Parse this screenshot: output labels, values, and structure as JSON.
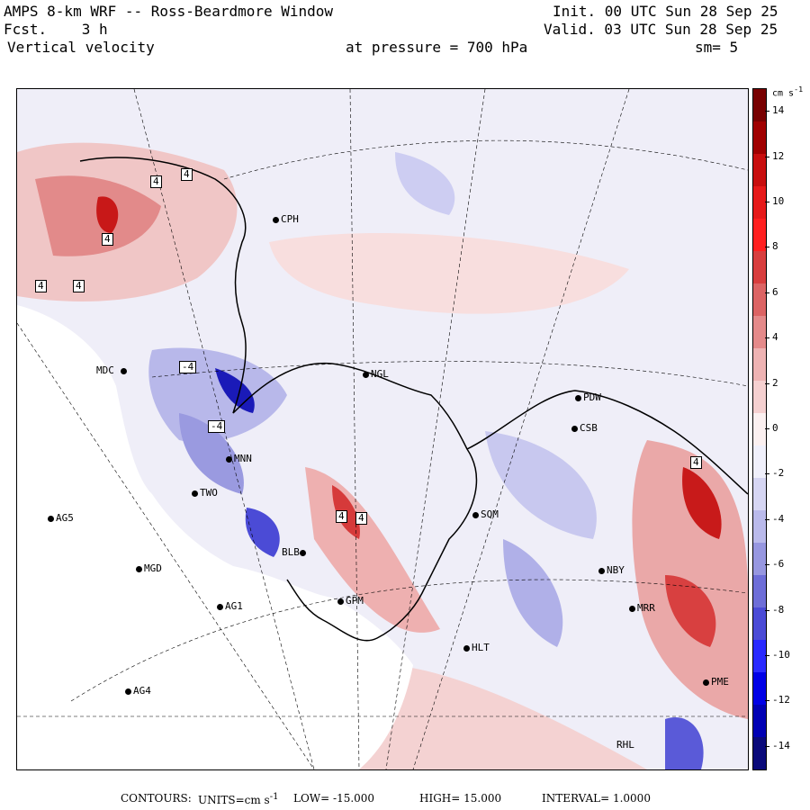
{
  "header": {
    "title": "AMPS 8-km WRF -- Ross-Beardmore Window",
    "fcst_label": "Fcst.",
    "fcst_value": "3 h",
    "field": "Vertical velocity",
    "pressure_label": "at pressure =",
    "pressure_value": "700 hPa",
    "smoothing": "sm= 5",
    "init": "Init. 00 UTC Sun 28 Sep 25",
    "valid": "Valid. 03 UTC Sun 28 Sep 25"
  },
  "colorbar": {
    "unit": "cm s",
    "unit_exp": "-1",
    "tick_labels": [
      "14",
      "12",
      "10",
      "8",
      "6",
      "4",
      "2",
      "0",
      "-2",
      "-4",
      "-6",
      "-8",
      "-10",
      "-12",
      "-14"
    ],
    "min": -15,
    "max": 15,
    "colors": [
      "#0a0a7a",
      "#0000b4",
      "#0000e6",
      "#2a2aff",
      "#4b4bd6",
      "#6e6ed8",
      "#9797e0",
      "#babaeb",
      "#d6d6f3",
      "#f0f0fb",
      "#fbf0f0",
      "#f5d0d0",
      "#eeb3b3",
      "#e48a8a",
      "#dc6464",
      "#d83e3e",
      "#ff2020",
      "#e61a1a",
      "#c80e0e",
      "#a00000",
      "#780000"
    ]
  },
  "stations": [
    {
      "code": "CPH"
    },
    {
      "code": "MDC"
    },
    {
      "code": "NGL"
    },
    {
      "code": "PDW"
    },
    {
      "code": "CSB"
    },
    {
      "code": "MNN"
    },
    {
      "code": "TWO"
    },
    {
      "code": "AG5"
    },
    {
      "code": "SQM"
    },
    {
      "code": "MGD"
    },
    {
      "code": "BLB"
    },
    {
      "code": "AG1"
    },
    {
      "code": "GPM"
    },
    {
      "code": "NBY"
    },
    {
      "code": "HLT"
    },
    {
      "code": "MRR"
    },
    {
      "code": "AG4"
    },
    {
      "code": "PME"
    },
    {
      "code": "RHL"
    }
  ],
  "contour_labels": [
    "4",
    "4",
    "4",
    "4",
    "4",
    "-4",
    "-4",
    "4",
    "4",
    "4"
  ],
  "footer": {
    "contours_label": "CONTOURS:",
    "units_label": "UNITS=cm s",
    "units_exp": "-1",
    "low": "LOW= -15.000",
    "high": "HIGH= 15.000",
    "interval": "INTERVAL= 1.0000"
  }
}
